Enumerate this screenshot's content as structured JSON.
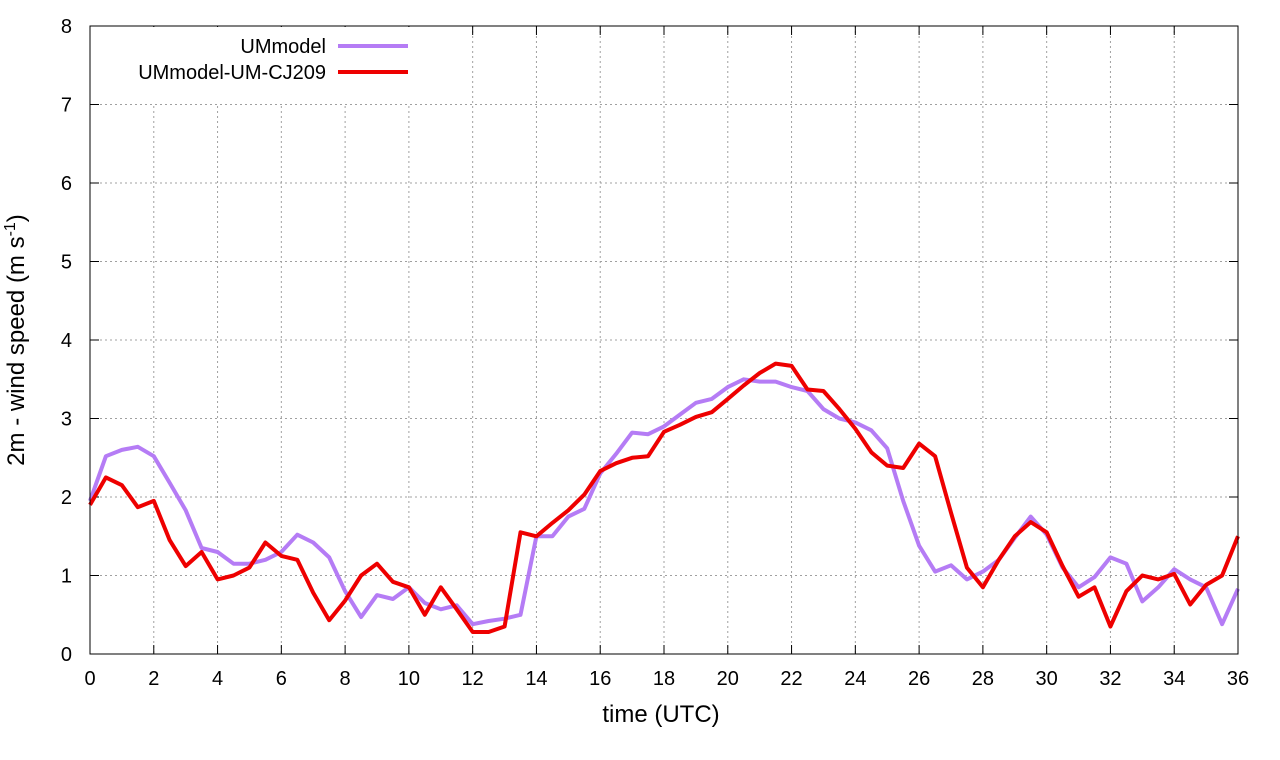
{
  "chart_data": {
    "type": "line",
    "xlabel": "time (UTC)",
    "ylabel_main": "2m - wind speed  (m s",
    "ylabel_sup": "-1",
    "ylabel_end": ")",
    "xlim": [
      0,
      36
    ],
    "ylim": [
      0,
      8
    ],
    "xticks": [
      0,
      2,
      4,
      6,
      8,
      10,
      12,
      14,
      16,
      18,
      20,
      22,
      24,
      26,
      28,
      30,
      32,
      34,
      36
    ],
    "yticks": [
      0,
      1,
      2,
      3,
      4,
      5,
      6,
      7,
      8
    ],
    "grid": true,
    "legend_position": "top-left",
    "series": [
      {
        "name": "UMmodel",
        "color": "#b57cf5",
        "x": [
          0,
          0.5,
          1,
          1.5,
          2,
          2.5,
          3,
          3.5,
          4,
          4.5,
          5,
          5.5,
          6,
          6.5,
          7,
          7.5,
          8,
          8.5,
          9,
          9.5,
          10,
          10.5,
          11,
          11.5,
          12,
          12.5,
          13,
          13.5,
          14,
          14.5,
          15,
          15.5,
          16,
          16.5,
          17,
          17.5,
          18,
          18.5,
          19,
          19.5,
          20,
          20.5,
          21,
          21.5,
          22,
          22.5,
          23,
          23.5,
          24,
          24.5,
          25,
          25.5,
          26,
          26.5,
          27,
          27.5,
          28,
          28.5,
          29,
          29.5,
          30,
          30.5,
          31,
          31.5,
          32,
          32.5,
          33,
          33.5,
          34,
          34.5,
          35,
          35.5,
          36
        ],
        "y": [
          1.95,
          2.52,
          2.6,
          2.64,
          2.52,
          2.18,
          1.83,
          1.35,
          1.3,
          1.15,
          1.15,
          1.2,
          1.3,
          1.52,
          1.42,
          1.23,
          0.8,
          0.47,
          0.75,
          0.7,
          0.85,
          0.65,
          0.57,
          0.62,
          0.38,
          0.42,
          0.45,
          0.5,
          1.5,
          1.5,
          1.75,
          1.85,
          2.3,
          2.55,
          2.82,
          2.8,
          2.9,
          3.05,
          3.2,
          3.25,
          3.4,
          3.5,
          3.47,
          3.47,
          3.4,
          3.35,
          3.12,
          3.0,
          2.95,
          2.85,
          2.62,
          1.95,
          1.38,
          1.05,
          1.13,
          0.95,
          1.05,
          1.2,
          1.48,
          1.75,
          1.52,
          1.1,
          0.85,
          0.98,
          1.23,
          1.15,
          0.67,
          0.85,
          1.08,
          0.95,
          0.85,
          0.38,
          0.83
        ]
      },
      {
        "name": "UMmodel-UM-CJ209",
        "color": "#ee0000",
        "x": [
          0,
          0.5,
          1,
          1.5,
          2,
          2.5,
          3,
          3.5,
          4,
          4.5,
          5,
          5.5,
          6,
          6.5,
          7,
          7.5,
          8,
          8.5,
          9,
          9.5,
          10,
          10.5,
          11,
          11.5,
          12,
          12.5,
          13,
          13.5,
          14,
          14.5,
          15,
          15.5,
          16,
          16.5,
          17,
          17.5,
          18,
          18.5,
          19,
          19.5,
          20,
          20.5,
          21,
          21.5,
          22,
          22.5,
          23,
          23.5,
          24,
          24.5,
          25,
          25.5,
          26,
          26.5,
          27,
          27.5,
          28,
          28.5,
          29,
          29.5,
          30,
          30.5,
          31,
          31.5,
          32,
          32.5,
          33,
          33.5,
          34,
          34.5,
          35,
          35.5,
          36
        ],
        "y": [
          1.9,
          2.25,
          2.15,
          1.87,
          1.95,
          1.45,
          1.12,
          1.3,
          0.95,
          1.0,
          1.1,
          1.42,
          1.25,
          1.2,
          0.78,
          0.43,
          0.68,
          1.0,
          1.15,
          0.92,
          0.85,
          0.5,
          0.85,
          0.57,
          0.28,
          0.28,
          0.35,
          1.55,
          1.5,
          1.67,
          1.83,
          2.03,
          2.33,
          2.43,
          2.5,
          2.52,
          2.83,
          2.92,
          3.02,
          3.08,
          3.25,
          3.42,
          3.58,
          3.7,
          3.67,
          3.37,
          3.35,
          3.12,
          2.87,
          2.57,
          2.4,
          2.37,
          2.68,
          2.52,
          1.8,
          1.1,
          0.85,
          1.2,
          1.5,
          1.68,
          1.55,
          1.12,
          0.73,
          0.85,
          0.35,
          0.8,
          1.0,
          0.95,
          1.02,
          0.63,
          0.88,
          1.0,
          1.5
        ]
      }
    ]
  }
}
